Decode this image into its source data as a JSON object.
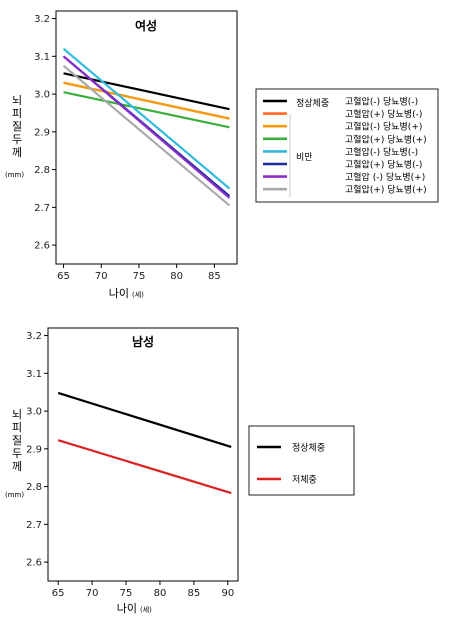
{
  "chart_data": [
    {
      "type": "line",
      "title": "여성",
      "xlabel": "나이",
      "xlabel_unit": "(세)",
      "ylabel": "뇌피질두께",
      "ylabel_unit": "(mm)",
      "xlim": [
        64,
        88
      ],
      "ylim": [
        2.55,
        3.22
      ],
      "xticks": [
        65,
        70,
        75,
        80,
        85
      ],
      "yticks": [
        2.6,
        2.7,
        2.8,
        2.9,
        3.0,
        3.1,
        3.2
      ],
      "grid": false,
      "legend_position": "right",
      "legend_groups": [
        {
          "group": "정상체중",
          "series": [
            0
          ]
        },
        {
          "group": "비만",
          "series": [
            1,
            2,
            3,
            4,
            5,
            6,
            7
          ]
        }
      ],
      "series": [
        {
          "label": "고혈압(-) 당뇨병(-)",
          "color": "#000000",
          "x": [
            65,
            87
          ],
          "y": [
            3.055,
            2.96
          ]
        },
        {
          "label": "고혈압(+) 당뇨병(-)",
          "color": "#ff6622",
          "x": [
            65,
            87
          ],
          "y": [
            3.03,
            2.935
          ]
        },
        {
          "label": "고혈압(-) 당뇨병(+)",
          "color": "#f39c12",
          "x": [
            65,
            87
          ],
          "y": [
            3.03,
            2.935
          ]
        },
        {
          "label": "고혈압(+) 당뇨병(+)",
          "color": "#3cae3c",
          "x": [
            65,
            87
          ],
          "y": [
            3.005,
            2.912
          ]
        },
        {
          "label": "고혈압(-) 당뇨병(-)",
          "color": "#33bbdd",
          "x": [
            65,
            87
          ],
          "y": [
            3.12,
            2.75
          ]
        },
        {
          "label": "고혈압(+) 당뇨병(-)",
          "color": "#1a2a9a",
          "x": [
            65,
            87
          ],
          "y": [
            3.1,
            2.73
          ]
        },
        {
          "label": "고혈압 (-) 당뇨병(+)",
          "color": "#8b2fc9",
          "x": [
            65,
            87
          ],
          "y": [
            3.1,
            2.725
          ]
        },
        {
          "label": "고혈압(+) 당뇨병(+)",
          "color": "#aaaaaa",
          "x": [
            65,
            87
          ],
          "y": [
            3.075,
            2.705
          ]
        }
      ]
    },
    {
      "type": "line",
      "title": "남성",
      "xlabel": "나이",
      "xlabel_unit": "(세)",
      "ylabel": "뇌피질두께",
      "ylabel_unit": "(mm)",
      "xlim": [
        63.5,
        91.5
      ],
      "ylim": [
        2.55,
        3.22
      ],
      "xticks": [
        65,
        70,
        75,
        80,
        85,
        90
      ],
      "yticks": [
        2.6,
        2.7,
        2.8,
        2.9,
        3.0,
        3.1,
        3.2
      ],
      "grid": false,
      "legend_position": "right",
      "series": [
        {
          "label": "정상체중",
          "color": "#000000",
          "x": [
            65,
            90.5
          ],
          "y": [
            3.048,
            2.905
          ]
        },
        {
          "label": "저체중",
          "color": "#dd2222",
          "x": [
            65,
            90.5
          ],
          "y": [
            2.923,
            2.783
          ]
        }
      ]
    }
  ]
}
